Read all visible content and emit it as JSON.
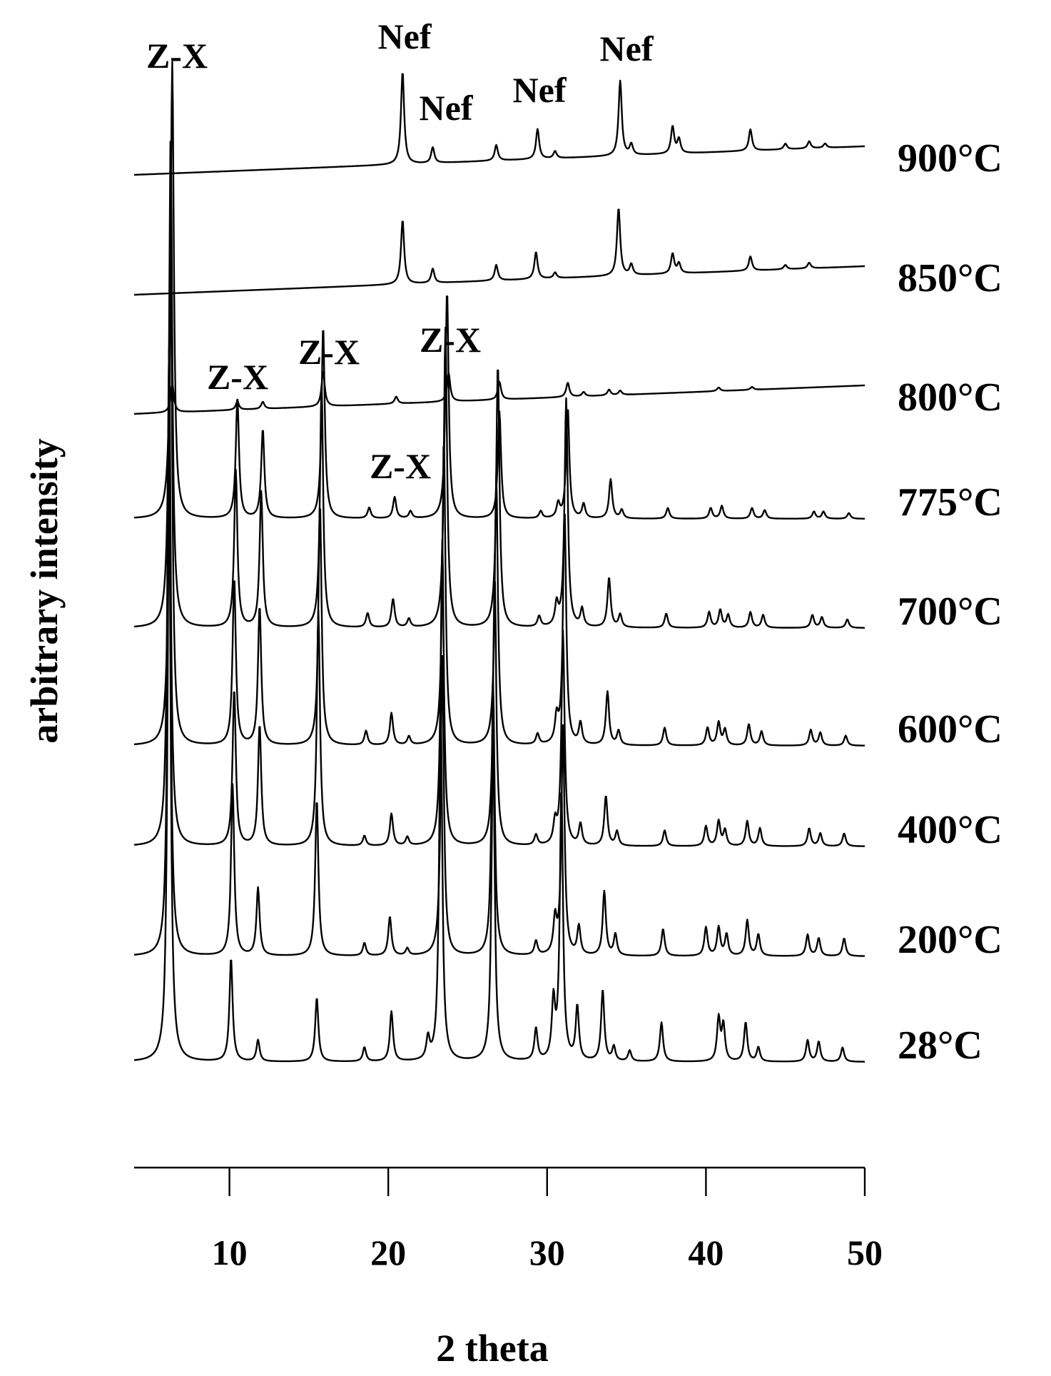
{
  "chart_data": {
    "type": "line",
    "xlabel": "2 theta",
    "ylabel": "arbitrary intensity",
    "xlim": [
      4,
      50
    ],
    "xticks": [
      10,
      20,
      30,
      40,
      50
    ],
    "xtick_labels": [
      "10",
      "20",
      "30",
      "40",
      "50"
    ],
    "grid": false,
    "legend": "none",
    "series": [
      {
        "name": "28°C",
        "baseline": {
          "start": 0,
          "end": 0
        },
        "peaks": [
          [
            6.2,
            820
          ],
          [
            10.1,
            145
          ],
          [
            11.8,
            30
          ],
          [
            15.5,
            90
          ],
          [
            18.5,
            20
          ],
          [
            20.2,
            70
          ],
          [
            22.5,
            30
          ],
          [
            23.3,
            500
          ],
          [
            26.6,
            450
          ],
          [
            29.3,
            45
          ],
          [
            30.4,
            80
          ],
          [
            30.9,
            380
          ],
          [
            31.9,
            75
          ],
          [
            33.5,
            100
          ],
          [
            34.2,
            20
          ],
          [
            35.2,
            15
          ],
          [
            37.2,
            55
          ],
          [
            40.8,
            60
          ],
          [
            41.1,
            50
          ],
          [
            42.5,
            55
          ],
          [
            43.3,
            20
          ],
          [
            46.4,
            30
          ],
          [
            47.1,
            28
          ],
          [
            48.6,
            20
          ]
        ]
      },
      {
        "name": "200°C",
        "baseline": {
          "start": 0,
          "end": 0
        },
        "peaks": [
          [
            6.2,
            700
          ],
          [
            10.2,
            240
          ],
          [
            11.8,
            95
          ],
          [
            15.5,
            220
          ],
          [
            18.5,
            18
          ],
          [
            20.1,
            55
          ],
          [
            21.2,
            10
          ],
          [
            23.4,
            420
          ],
          [
            26.6,
            380
          ],
          [
            29.3,
            20
          ],
          [
            30.5,
            48
          ],
          [
            31.0,
            320
          ],
          [
            32.0,
            40
          ],
          [
            33.6,
            90
          ],
          [
            34.3,
            30
          ],
          [
            37.3,
            38
          ],
          [
            40.0,
            40
          ],
          [
            40.8,
            40
          ],
          [
            41.3,
            30
          ],
          [
            42.6,
            50
          ],
          [
            43.3,
            30
          ],
          [
            46.4,
            30
          ],
          [
            47.1,
            25
          ],
          [
            48.7,
            25
          ]
        ]
      },
      {
        "name": "400°C",
        "baseline": {
          "start": 0,
          "end": 0
        },
        "peaks": [
          [
            6.2,
            700
          ],
          [
            10.3,
            220
          ],
          [
            11.9,
            170
          ],
          [
            15.6,
            330
          ],
          [
            18.5,
            14
          ],
          [
            20.2,
            45
          ],
          [
            21.2,
            12
          ],
          [
            23.4,
            430
          ],
          [
            26.7,
            380
          ],
          [
            29.3,
            15
          ],
          [
            30.5,
            30
          ],
          [
            31.0,
            300
          ],
          [
            32.1,
            30
          ],
          [
            33.7,
            70
          ],
          [
            34.4,
            20
          ],
          [
            37.4,
            22
          ],
          [
            40.0,
            28
          ],
          [
            40.8,
            35
          ],
          [
            41.2,
            22
          ],
          [
            42.6,
            35
          ],
          [
            43.4,
            25
          ],
          [
            46.5,
            25
          ],
          [
            47.2,
            18
          ],
          [
            48.7,
            18
          ]
        ]
      },
      {
        "name": "600°C",
        "baseline": {
          "start": 0,
          "end": 0
        },
        "peaks": [
          [
            6.3,
            700
          ],
          [
            10.3,
            235
          ],
          [
            11.9,
            195
          ],
          [
            15.7,
            340
          ],
          [
            18.6,
            20
          ],
          [
            20.2,
            45
          ],
          [
            21.3,
            12
          ],
          [
            23.5,
            430
          ],
          [
            26.8,
            380
          ],
          [
            29.4,
            15
          ],
          [
            30.6,
            35
          ],
          [
            31.1,
            330
          ],
          [
            32.1,
            30
          ],
          [
            33.8,
            75
          ],
          [
            34.5,
            20
          ],
          [
            37.4,
            25
          ],
          [
            40.1,
            25
          ],
          [
            40.8,
            32
          ],
          [
            41.2,
            22
          ],
          [
            42.7,
            30
          ],
          [
            43.5,
            20
          ],
          [
            46.6,
            22
          ],
          [
            47.2,
            18
          ],
          [
            48.8,
            14
          ]
        ]
      },
      {
        "name": "700°C",
        "baseline": {
          "start": 0,
          "end": 0
        },
        "peaks": [
          [
            6.3,
            700
          ],
          [
            10.4,
            220
          ],
          [
            12.0,
            190
          ],
          [
            15.8,
            340
          ],
          [
            18.7,
            20
          ],
          [
            20.3,
            40
          ],
          [
            21.3,
            12
          ],
          [
            23.6,
            420
          ],
          [
            26.9,
            370
          ],
          [
            29.5,
            15
          ],
          [
            30.6,
            30
          ],
          [
            31.2,
            320
          ],
          [
            32.2,
            25
          ],
          [
            33.9,
            70
          ],
          [
            34.6,
            18
          ],
          [
            37.5,
            20
          ],
          [
            40.2,
            22
          ],
          [
            40.9,
            25
          ],
          [
            41.4,
            18
          ],
          [
            42.8,
            22
          ],
          [
            43.6,
            18
          ],
          [
            46.7,
            18
          ],
          [
            47.3,
            15
          ],
          [
            48.9,
            12
          ]
        ]
      },
      {
        "name": "775°C",
        "baseline": {
          "start": 0,
          "end": 0
        },
        "peaks": [
          [
            6.4,
            640
          ],
          [
            10.5,
            170
          ],
          [
            12.1,
            125
          ],
          [
            15.9,
            270
          ],
          [
            18.8,
            15
          ],
          [
            20.4,
            30
          ],
          [
            21.4,
            10
          ],
          [
            23.7,
            320
          ],
          [
            27.0,
            150
          ],
          [
            29.6,
            10
          ],
          [
            30.7,
            20
          ],
          [
            31.3,
            155
          ],
          [
            32.3,
            20
          ],
          [
            34.0,
            55
          ],
          [
            34.7,
            12
          ],
          [
            37.6,
            15
          ],
          [
            40.3,
            15
          ],
          [
            41.0,
            18
          ],
          [
            42.9,
            15
          ],
          [
            43.7,
            12
          ],
          [
            46.8,
            10
          ],
          [
            47.4,
            10
          ],
          [
            49.0,
            8
          ]
        ]
      },
      {
        "name": "800°C",
        "baseline": {
          "start": 0,
          "end": 40
        },
        "peaks": [
          [
            6.4,
            40
          ],
          [
            10.5,
            12
          ],
          [
            12.1,
            10
          ],
          [
            15.9,
            50
          ],
          [
            20.5,
            10
          ],
          [
            23.8,
            40
          ],
          [
            27.0,
            25
          ],
          [
            31.3,
            20
          ],
          [
            32.3,
            6
          ],
          [
            33.9,
            8
          ],
          [
            34.6,
            6
          ],
          [
            40.8,
            5
          ],
          [
            42.9,
            4
          ]
        ]
      },
      {
        "name": "850°C",
        "baseline": {
          "start": 0,
          "end": 40
        },
        "peaks": [
          [
            20.9,
            90
          ],
          [
            22.8,
            20
          ],
          [
            26.8,
            22
          ],
          [
            29.3,
            38
          ],
          [
            30.5,
            8
          ],
          [
            34.5,
            95
          ],
          [
            35.3,
            15
          ],
          [
            37.9,
            28
          ],
          [
            38.3,
            14
          ],
          [
            42.8,
            20
          ],
          [
            45.0,
            6
          ],
          [
            46.5,
            8
          ]
        ]
      },
      {
        "name": "900°C",
        "baseline": {
          "start": 0,
          "end": 40
        },
        "peaks": [
          [
            20.9,
            130
          ],
          [
            22.8,
            22
          ],
          [
            26.8,
            22
          ],
          [
            29.4,
            42
          ],
          [
            30.5,
            10
          ],
          [
            34.6,
            105
          ],
          [
            35.3,
            15
          ],
          [
            37.9,
            38
          ],
          [
            38.3,
            20
          ],
          [
            42.8,
            30
          ],
          [
            45.0,
            8
          ],
          [
            46.5,
            10
          ],
          [
            47.5,
            6
          ]
        ]
      }
    ],
    "annotations": [
      {
        "text": "Z-X",
        "x": 6.3,
        "series": "900°C"
      },
      {
        "text": "Nef",
        "x": 21.0,
        "series": "900°C"
      },
      {
        "text": "Nef",
        "x": 23.7,
        "series": "900°C"
      },
      {
        "text": "Nef",
        "x": 29.6,
        "series": "900°C"
      },
      {
        "text": "Nef",
        "x": 35.0,
        "series": "900°C"
      },
      {
        "text": "Z-X",
        "x": 10.7,
        "series": "800°C"
      },
      {
        "text": "Z-X",
        "x": 15.9,
        "series": "800°C"
      },
      {
        "text": "Z-X",
        "x": 23.5,
        "series": "800°C"
      },
      {
        "text": "Z-X",
        "x": 20.7,
        "series": "775°C"
      }
    ]
  }
}
